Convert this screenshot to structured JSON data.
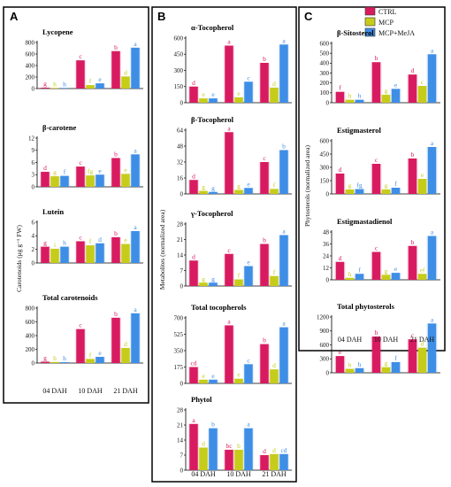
{
  "colors": {
    "CTRL": "#d81b60",
    "MCP": "#c6cc1a",
    "MCP+MeJA": "#3e8ee6"
  },
  "legend": [
    "CTRL",
    "MCP",
    "MCP+MeJA"
  ],
  "panels": [
    {
      "label": "A",
      "ylabel": "Carotenoids (μg g⁻¹ FW)",
      "xticks": [
        "04 DAH",
        "10 DAH",
        "21 DAH"
      ]
    },
    {
      "label": "B",
      "ylabel": "Metabolites (normalized area)",
      "xticks": [
        "04 DAH",
        "10 DAH",
        "21 DAH"
      ]
    },
    {
      "label": "C",
      "ylabel": "Phytosterols (normalized area)",
      "xticks": [
        "04 DAH",
        "10 DAH",
        "21 DAH"
      ]
    }
  ],
  "chart_data": [
    {
      "type": "bar",
      "panel": "A",
      "title": "Lycopene",
      "categories": [
        "04 DAH",
        "10 DAH",
        "21 DAH"
      ],
      "ylim": [
        0,
        800
      ],
      "yticks": [
        0,
        200,
        400,
        600,
        800
      ],
      "series": [
        {
          "name": "CTRL",
          "values": [
            15,
            490,
            650
          ]
        },
        {
          "name": "MCP",
          "values": [
            10,
            60,
            210
          ]
        },
        {
          "name": "MCP+MeJA",
          "values": [
            10,
            90,
            710
          ]
        }
      ],
      "letters": [
        [
          "g",
          "h",
          "h"
        ],
        [
          "c",
          "f",
          "e"
        ],
        [
          "b",
          "d",
          "a"
        ]
      ]
    },
    {
      "type": "bar",
      "panel": "A",
      "title": "β-carotene",
      "categories": [
        "04 DAH",
        "10 DAH",
        "21 DAH"
      ],
      "ylim": [
        0,
        12
      ],
      "yticks": [
        0,
        3,
        6,
        9,
        12
      ],
      "series": [
        {
          "name": "CTRL",
          "values": [
            3.7,
            5.0,
            7.1
          ]
        },
        {
          "name": "MCP",
          "values": [
            2.6,
            2.8,
            3.2
          ]
        },
        {
          "name": "MCP+MeJA",
          "values": [
            2.7,
            3.0,
            8.0
          ]
        }
      ],
      "letters": [
        [
          "d",
          "g",
          "f"
        ],
        [
          "c",
          "fg",
          "e"
        ],
        [
          "b",
          "e",
          "a"
        ]
      ]
    },
    {
      "type": "bar",
      "panel": "A",
      "title": "Lutein",
      "categories": [
        "04 DAH",
        "10 DAH",
        "21 DAH"
      ],
      "ylim": [
        0,
        6
      ],
      "yticks": [
        0,
        2,
        4,
        6
      ],
      "series": [
        {
          "name": "CTRL",
          "values": [
            2.4,
            3.2,
            3.8
          ]
        },
        {
          "name": "MCP",
          "values": [
            2.1,
            2.6,
            2.8
          ]
        },
        {
          "name": "MCP+MeJA",
          "values": [
            2.4,
            2.9,
            4.7
          ]
        }
      ],
      "letters": [
        [
          "g",
          "i",
          "h"
        ],
        [
          "c",
          "f",
          "d"
        ],
        [
          "b",
          "e",
          "a"
        ]
      ]
    },
    {
      "type": "bar",
      "panel": "A",
      "title": "Total  carotenoids",
      "categories": [
        "04 DAH",
        "10 DAH",
        "21 DAH"
      ],
      "ylim": [
        0,
        800
      ],
      "yticks": [
        0,
        200,
        400,
        600,
        800
      ],
      "series": [
        {
          "name": "CTRL",
          "values": [
            20,
            495,
            660
          ]
        },
        {
          "name": "MCP",
          "values": [
            15,
            60,
            220
          ]
        },
        {
          "name": "MCP+MeJA",
          "values": [
            12,
            90,
            725
          ]
        }
      ],
      "letters": [
        [
          "g",
          "h",
          "h"
        ],
        [
          "c",
          "f",
          "e"
        ],
        [
          "b",
          "d",
          "a"
        ]
      ]
    },
    {
      "type": "bar",
      "panel": "B",
      "title": "α-Tocopherol",
      "categories": [
        "04 DAH",
        "10 DAH",
        "21 DAH"
      ],
      "ylim": [
        0,
        600
      ],
      "yticks": [
        0,
        150,
        300,
        450,
        600
      ],
      "series": [
        {
          "name": "CTRL",
          "values": [
            150,
            530,
            370
          ]
        },
        {
          "name": "MCP",
          "values": [
            40,
            50,
            140
          ]
        },
        {
          "name": "MCP+MeJA",
          "values": [
            40,
            195,
            540
          ]
        }
      ],
      "letters": [
        [
          "d",
          "e",
          "e"
        ],
        [
          "a",
          "e",
          "c"
        ],
        [
          "b",
          "d",
          "a"
        ]
      ]
    },
    {
      "type": "bar",
      "panel": "B",
      "title": "β-Tocopherol",
      "categories": [
        "04 DAH",
        "10 DAH",
        "21 DAH"
      ],
      "ylim": [
        0,
        64
      ],
      "yticks": [
        0,
        16,
        32,
        48,
        64
      ],
      "series": [
        {
          "name": "CTRL",
          "values": [
            14,
            62,
            32
          ]
        },
        {
          "name": "MCP",
          "values": [
            3,
            4,
            5
          ]
        },
        {
          "name": "MCP+MeJA",
          "values": [
            2,
            6,
            44
          ]
        }
      ],
      "letters": [
        [
          "d",
          "g",
          "g"
        ],
        [
          "a",
          "g",
          "e"
        ],
        [
          "c",
          "f",
          "b"
        ]
      ]
    },
    {
      "type": "bar",
      "panel": "B",
      "title": "γ-Tocopherol",
      "categories": [
        "04 DAH",
        "10 DAH",
        "21 DAH"
      ],
      "ylim": [
        0,
        28
      ],
      "yticks": [
        0,
        7,
        14,
        21,
        28
      ],
      "series": [
        {
          "name": "CTRL",
          "values": [
            11.5,
            14.5,
            19
          ]
        },
        {
          "name": "MCP",
          "values": [
            1.5,
            3,
            4.5
          ]
        },
        {
          "name": "MCP+MeJA",
          "values": [
            1.5,
            9,
            23
          ]
        }
      ],
      "letters": [
        [
          "d",
          "g",
          "g"
        ],
        [
          "c",
          "f",
          "e"
        ],
        [
          "b",
          "f",
          "a"
        ]
      ]
    },
    {
      "type": "bar",
      "panel": "B",
      "title": "Total  tocopherols",
      "categories": [
        "04 DAH",
        "10 DAH",
        "21 DAH"
      ],
      "ylim": [
        0,
        700
      ],
      "yticks": [
        0,
        175,
        350,
        525,
        700
      ],
      "series": [
        {
          "name": "CTRL",
          "values": [
            175,
            620,
            420
          ]
        },
        {
          "name": "MCP",
          "values": [
            40,
            50,
            150
          ]
        },
        {
          "name": "MCP+MeJA",
          "values": [
            40,
            205,
            600
          ]
        }
      ],
      "letters": [
        [
          "cd",
          "e",
          "e"
        ],
        [
          "a",
          "e",
          "c"
        ],
        [
          "b",
          "d",
          "a"
        ]
      ]
    },
    {
      "type": "bar",
      "panel": "B",
      "title": "Phytol",
      "categories": [
        "04 DAH",
        "10 DAH",
        "21 DAH"
      ],
      "ylim": [
        0,
        28
      ],
      "yticks": [
        0,
        7,
        14,
        21,
        28
      ],
      "series": [
        {
          "name": "CTRL",
          "values": [
            21.5,
            9.5,
            7
          ]
        },
        {
          "name": "MCP",
          "values": [
            10.5,
            9.5,
            7.5
          ]
        },
        {
          "name": "MCP+MeJA",
          "values": [
            19.5,
            19.5,
            7.5
          ]
        }
      ],
      "letters": [
        [
          "a",
          "d",
          "b"
        ],
        [
          "bc",
          "b",
          "a"
        ],
        [
          "d",
          "d",
          "cd"
        ]
      ]
    },
    {
      "type": "bar",
      "panel": "C",
      "title": "β-Sitosterol",
      "categories": [
        "04 DAH",
        "10 DAH",
        "21 DAH"
      ],
      "ylim": [
        0,
        600
      ],
      "yticks": [
        0,
        100,
        200,
        300,
        400,
        500,
        600
      ],
      "series": [
        {
          "name": "CTRL",
          "values": [
            110,
            410,
            285
          ]
        },
        {
          "name": "MCP",
          "values": [
            30,
            80,
            170
          ]
        },
        {
          "name": "MCP+MeJA",
          "values": [
            30,
            140,
            490
          ]
        }
      ],
      "letters": [
        [
          "f",
          "h",
          "h"
        ],
        [
          "b",
          "g",
          "e"
        ],
        [
          "d",
          "c",
          "a"
        ]
      ]
    },
    {
      "type": "bar",
      "panel": "C",
      "title": "Estigmasterol",
      "categories": [
        "04 DAH",
        "10 DAH",
        "21 DAH"
      ],
      "ylim": [
        0,
        600
      ],
      "yticks": [
        0,
        150,
        300,
        450,
        600
      ],
      "series": [
        {
          "name": "CTRL",
          "values": [
            230,
            340,
            400
          ]
        },
        {
          "name": "MCP",
          "values": [
            50,
            50,
            170
          ]
        },
        {
          "name": "MCP+MeJA",
          "values": [
            55,
            70,
            530
          ]
        }
      ],
      "letters": [
        [
          "d",
          "g",
          "fg"
        ],
        [
          "c",
          "g",
          "f"
        ],
        [
          "b",
          "e",
          "a"
        ]
      ]
    },
    {
      "type": "bar",
      "panel": "C",
      "title": "Estigmastadienol",
      "categories": [
        "04 DAH",
        "10 DAH",
        "21 DAH"
      ],
      "ylim": [
        0,
        48
      ],
      "yticks": [
        0,
        12,
        24,
        36,
        48
      ],
      "series": [
        {
          "name": "CTRL",
          "values": [
            18,
            28,
            34
          ]
        },
        {
          "name": "MCP",
          "values": [
            2,
            5,
            6
          ]
        },
        {
          "name": "MCP+MeJA",
          "values": [
            6,
            7,
            44
          ]
        }
      ],
      "letters": [
        [
          "d",
          "h",
          "f"
        ],
        [
          "c",
          "g",
          "e"
        ],
        [
          "b",
          "ef",
          "a"
        ]
      ]
    },
    {
      "type": "bar",
      "panel": "C",
      "title": "Total  phytosterols",
      "categories": [
        "04 DAH",
        "10 DAH",
        "21 DAH"
      ],
      "ylim": [
        0,
        1200
      ],
      "yticks": [
        0,
        300,
        600,
        900,
        1200
      ],
      "series": [
        {
          "name": "CTRL",
          "values": [
            360,
            780,
            720
          ]
        },
        {
          "name": "MCP",
          "values": [
            85,
            120,
            540
          ]
        },
        {
          "name": "MCP+MeJA",
          "values": [
            100,
            230,
            1060
          ]
        }
      ],
      "letters": [
        [
          "e",
          "h",
          "h"
        ],
        [
          "b",
          "g",
          "f"
        ],
        [
          "c",
          "d",
          "a"
        ]
      ]
    }
  ]
}
